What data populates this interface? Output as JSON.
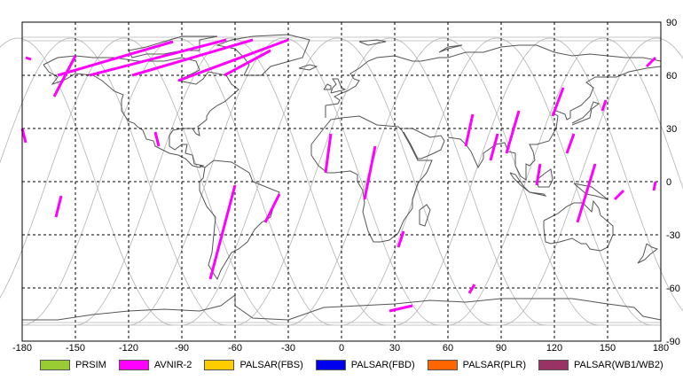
{
  "map": {
    "x_ticks": [
      "-180",
      "-150",
      "-120",
      "-90",
      "-60",
      "-30",
      "0",
      "30",
      "60",
      "90",
      "120",
      "150",
      "180"
    ],
    "y_ticks": [
      "90",
      "60",
      "30",
      "0",
      "-30",
      "-60",
      "-90"
    ],
    "x_range": [
      -180,
      180
    ],
    "y_range": [
      -90,
      90
    ],
    "grid": true,
    "orbit_color": "#b4b4b4",
    "coast_color": "#555555",
    "acquisition_segments": [
      {
        "lon1": -178,
        "lat1": 70,
        "lon2": -175,
        "lat2": 69
      },
      {
        "lon1": -150,
        "lat1": 71,
        "lon2": -162,
        "lat2": 48
      },
      {
        "lon1": -95,
        "lat1": 79,
        "lon2": -160,
        "lat2": 60
      },
      {
        "lon1": -65,
        "lat1": 80,
        "lon2": -142,
        "lat2": 60
      },
      {
        "lon1": -50,
        "lat1": 80,
        "lon2": -118,
        "lat2": 60
      },
      {
        "lon1": -30,
        "lat1": 80,
        "lon2": -92,
        "lat2": 57
      },
      {
        "lon1": -40,
        "lat1": 74,
        "lon2": -66,
        "lat2": 60
      },
      {
        "lon1": -180,
        "lat1": 30,
        "lon2": -178,
        "lat2": 22
      },
      {
        "lon1": -105,
        "lat1": 28,
        "lon2": -103,
        "lat2": 20
      },
      {
        "lon1": -158,
        "lat1": -8,
        "lon2": -161,
        "lat2": -20
      },
      {
        "lon1": -60,
        "lat1": -2,
        "lon2": -74,
        "lat2": -55
      },
      {
        "lon1": -35,
        "lat1": -7,
        "lon2": -43,
        "lat2": -23
      },
      {
        "lon1": -6,
        "lat1": 27,
        "lon2": -9,
        "lat2": 5
      },
      {
        "lon1": 19,
        "lat1": 20,
        "lon2": 13,
        "lat2": -10
      },
      {
        "lon1": 35,
        "lat1": -28,
        "lon2": 32,
        "lat2": -37
      },
      {
        "lon1": 75,
        "lat1": -58,
        "lon2": 72,
        "lat2": -63
      },
      {
        "lon1": 40,
        "lat1": -70,
        "lon2": 27,
        "lat2": -73
      },
      {
        "lon1": 74,
        "lat1": 38,
        "lon2": 70,
        "lat2": 20
      },
      {
        "lon1": 88,
        "lat1": 27,
        "lon2": 84,
        "lat2": 12
      },
      {
        "lon1": 100,
        "lat1": 40,
        "lon2": 93,
        "lat2": 16
      },
      {
        "lon1": 112,
        "lat1": 10,
        "lon2": 110,
        "lat2": -2
      },
      {
        "lon1": 125,
        "lat1": 53,
        "lon2": 119,
        "lat2": 37
      },
      {
        "lon1": 131,
        "lat1": 27,
        "lon2": 127,
        "lat2": 16
      },
      {
        "lon1": 143,
        "lat1": 10,
        "lon2": 133,
        "lat2": -23
      },
      {
        "lon1": 149,
        "lat1": 46,
        "lon2": 147,
        "lat2": 40
      },
      {
        "lon1": 159,
        "lat1": -5,
        "lon2": 154,
        "lat2": -10
      },
      {
        "lon1": 177,
        "lat1": 70,
        "lon2": 172,
        "lat2": 65
      },
      {
        "lon1": 177,
        "lat1": 0,
        "lon2": 176,
        "lat2": -5
      }
    ]
  },
  "legend": [
    {
      "label": "PRSIM",
      "color": "#99cc33"
    },
    {
      "label": "AVNIR-2",
      "color": "#ff00ff"
    },
    {
      "label": "PALSAR(FBS)",
      "color": "#ffcc00"
    },
    {
      "label": "PALSAR(FBD)",
      "color": "#0000ee"
    },
    {
      "label": "PALSAR(PLR)",
      "color": "#ff6600"
    },
    {
      "label": "PALSAR(WB1/WB2)",
      "color": "#993366"
    }
  ]
}
